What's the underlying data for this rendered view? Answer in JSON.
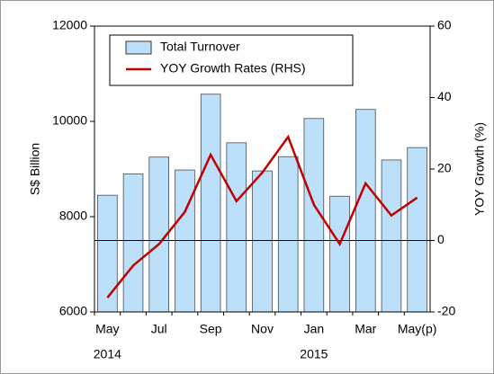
{
  "chart_data": {
    "type": "bar_line",
    "categories": [
      "May",
      null,
      "Jul",
      null,
      "Sep",
      null,
      "Nov",
      null,
      "Jan",
      null,
      "Mar",
      null,
      "May(p)"
    ],
    "years": [
      "2014",
      null,
      null,
      null,
      null,
      null,
      null,
      null,
      "2015",
      null,
      null,
      null,
      null
    ],
    "series": [
      {
        "name": "Total Turnover",
        "type": "bar",
        "color": "#bde0fa",
        "values": [
          8450,
          8900,
          9250,
          8980,
          10570,
          9550,
          8960,
          9260,
          10060,
          8430,
          10250,
          9190,
          9450
        ]
      },
      {
        "name": "YOY Growth Rates (RHS)",
        "type": "line",
        "axis": "y2",
        "color": "#c00000",
        "values": [
          -16,
          -7,
          -1,
          8,
          24,
          11,
          19,
          29,
          10,
          -1,
          16,
          7,
          12
        ]
      }
    ],
    "ylabel": "S$ Billion",
    "y2label": "YOY Growth (%)",
    "ylim": [
      6000,
      12000
    ],
    "yticks": [
      6000,
      8000,
      10000,
      12000
    ],
    "y2lim": [
      -20,
      60
    ],
    "y2ticks": [
      -20,
      0,
      20,
      40,
      60
    ],
    "legend": "upper left"
  }
}
